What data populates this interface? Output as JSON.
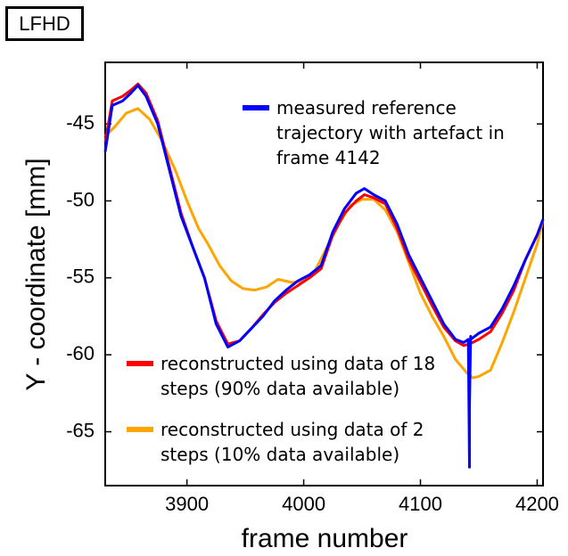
{
  "label_box": "LFHD",
  "chart_data": {
    "type": "line",
    "title": "",
    "xlabel": "frame number",
    "ylabel": "Y - coordinate [mm]",
    "xlim": [
      3830,
      4205
    ],
    "ylim": [
      -68.5,
      -41
    ],
    "xticks": [
      3900,
      4000,
      4100,
      4200
    ],
    "yticks": [
      -45,
      -50,
      -55,
      -60,
      -65
    ],
    "grid": false,
    "legend_entries": [
      {
        "series_index": 0,
        "lines": [
          "measured reference",
          "trajectory with artefact in",
          "frame 4142"
        ]
      },
      {
        "series_index": 1,
        "lines": [
          "reconstructed using data of 18",
          "steps (90% data available)"
        ]
      },
      {
        "series_index": 2,
        "lines": [
          "reconstructed using data of 2",
          "steps (10% data available)"
        ]
      }
    ],
    "series": [
      {
        "name": "measured reference trajectory with artefact in frame 4142",
        "color": "#0000ff",
        "x": [
          3830,
          3836,
          3845,
          3852,
          3858,
          3865,
          3875,
          3885,
          3895,
          3905,
          3915,
          3925,
          3935,
          3945,
          3955,
          3965,
          3975,
          3985,
          3995,
          4005,
          4015,
          4025,
          4035,
          4045,
          4052,
          4060,
          4070,
          4080,
          4090,
          4100,
          4110,
          4120,
          4130,
          4137,
          4141,
          4142,
          4142,
          4143,
          4143,
          4150,
          4160,
          4170,
          4180,
          4190,
          4200,
          4205
        ],
        "y": [
          -46.8,
          -43.8,
          -43.5,
          -43.0,
          -42.5,
          -43.2,
          -45.0,
          -48.0,
          -51.0,
          -53.0,
          -55.0,
          -58.0,
          -59.5,
          -59.1,
          -58.3,
          -57.5,
          -56.5,
          -55.8,
          -55.2,
          -54.8,
          -54.2,
          -52.0,
          -50.5,
          -49.5,
          -49.2,
          -49.6,
          -50.0,
          -51.5,
          -53.5,
          -55.0,
          -56.5,
          -58.0,
          -59.0,
          -59.2,
          -59.0,
          -67.3,
          -63.5,
          -58.8,
          -59.0,
          -58.6,
          -58.2,
          -57.0,
          -55.5,
          -53.8,
          -52.2,
          -51.2
        ]
      },
      {
        "name": "reconstructed using data of 18 steps (90% data available)",
        "color": "#ff0000",
        "x": [
          3830,
          3836,
          3845,
          3852,
          3858,
          3865,
          3875,
          3885,
          3895,
          3905,
          3915,
          3925,
          3935,
          3945,
          3955,
          3965,
          3975,
          3985,
          3995,
          4005,
          4015,
          4025,
          4035,
          4045,
          4052,
          4060,
          4070,
          4080,
          4090,
          4100,
          4110,
          4120,
          4130,
          4137,
          4142,
          4150,
          4160,
          4170,
          4180,
          4190,
          4200,
          4205
        ],
        "y": [
          -46.2,
          -43.5,
          -43.2,
          -42.8,
          -42.4,
          -43.0,
          -44.8,
          -47.8,
          -50.8,
          -53.0,
          -55.0,
          -57.8,
          -59.3,
          -59.1,
          -58.3,
          -57.4,
          -56.6,
          -56.0,
          -55.5,
          -55.0,
          -54.4,
          -52.2,
          -50.8,
          -50.0,
          -49.6,
          -49.8,
          -50.2,
          -51.8,
          -53.8,
          -55.3,
          -56.8,
          -58.2,
          -59.1,
          -59.4,
          -59.3,
          -59.0,
          -58.5,
          -57.3,
          -55.8,
          -53.8,
          -52.2,
          -51.2
        ]
      },
      {
        "name": "reconstructed using data of 2 steps (10% data available)",
        "color": "#ffa500",
        "x": [
          3830,
          3838,
          3848,
          3858,
          3868,
          3878,
          3890,
          3900,
          3910,
          3918,
          3928,
          3938,
          3948,
          3958,
          3968,
          3978,
          3990,
          4000,
          4010,
          4020,
          4030,
          4040,
          4050,
          4060,
          4070,
          4080,
          4090,
          4100,
          4110,
          4120,
          4130,
          4140,
          4145,
          4150,
          4160,
          4170,
          4180,
          4190,
          4200,
          4205
        ],
        "y": [
          -45.8,
          -45.2,
          -44.3,
          -44.0,
          -44.7,
          -46.0,
          -48.0,
          -50.0,
          -51.8,
          -52.8,
          -54.2,
          -55.2,
          -55.7,
          -55.8,
          -55.6,
          -55.1,
          -55.3,
          -55.2,
          -54.5,
          -53.0,
          -51.5,
          -50.3,
          -49.9,
          -49.9,
          -50.6,
          -52.0,
          -54.0,
          -56.0,
          -57.5,
          -58.8,
          -60.3,
          -61.2,
          -61.5,
          -61.4,
          -61.0,
          -59.2,
          -57.2,
          -55.0,
          -52.8,
          -51.2
        ]
      }
    ]
  }
}
